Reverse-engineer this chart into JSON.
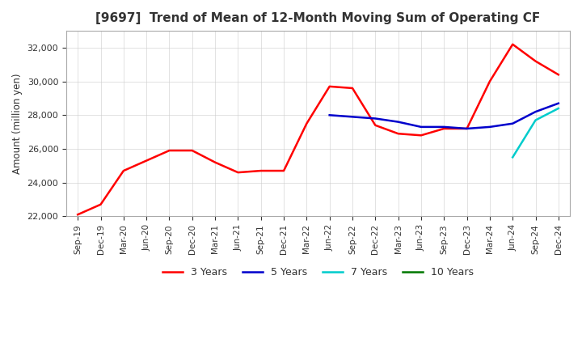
{
  "title": "[9697]  Trend of Mean of 12-Month Moving Sum of Operating CF",
  "ylabel": "Amount (million yen)",
  "ylim": [
    22000,
    33000
  ],
  "yticks": [
    22000,
    24000,
    26000,
    28000,
    30000,
    32000
  ],
  "background_color": "#ffffff",
  "grid_color": "#cccccc",
  "line_colors": {
    "3y": "#ff0000",
    "5y": "#0000cc",
    "7y": "#00cccc",
    "10y": "#007700"
  },
  "legend_labels": [
    "3 Years",
    "5 Years",
    "7 Years",
    "10 Years"
  ],
  "x_labels": [
    "Sep-19",
    "Dec-19",
    "Mar-20",
    "Jun-20",
    "Sep-20",
    "Dec-20",
    "Mar-21",
    "Jun-21",
    "Sep-21",
    "Dec-21",
    "Mar-22",
    "Jun-22",
    "Sep-22",
    "Dec-22",
    "Mar-23",
    "Jun-23",
    "Sep-23",
    "Dec-23",
    "Mar-24",
    "Jun-24",
    "Sep-24",
    "Dec-24"
  ],
  "data_3y": [
    22100,
    22700,
    24700,
    25300,
    25900,
    25900,
    25200,
    24600,
    24700,
    24700,
    27500,
    29700,
    29600,
    27400,
    26900,
    26800,
    27200,
    27200,
    30000,
    32200,
    31200,
    30400
  ],
  "data_5y": [
    null,
    null,
    null,
    null,
    null,
    null,
    null,
    null,
    null,
    null,
    null,
    28000,
    27900,
    27800,
    27600,
    27300,
    27300,
    27200,
    27300,
    27500,
    28200,
    28700
  ],
  "data_7y": [
    null,
    null,
    null,
    null,
    null,
    null,
    null,
    null,
    null,
    null,
    null,
    null,
    null,
    null,
    null,
    null,
    null,
    null,
    null,
    25500,
    27700,
    28400
  ],
  "data_10y": [
    null,
    null,
    null,
    null,
    null,
    null,
    null,
    null,
    null,
    null,
    null,
    null,
    null,
    null,
    null,
    null,
    null,
    null,
    null,
    null,
    null,
    null
  ]
}
